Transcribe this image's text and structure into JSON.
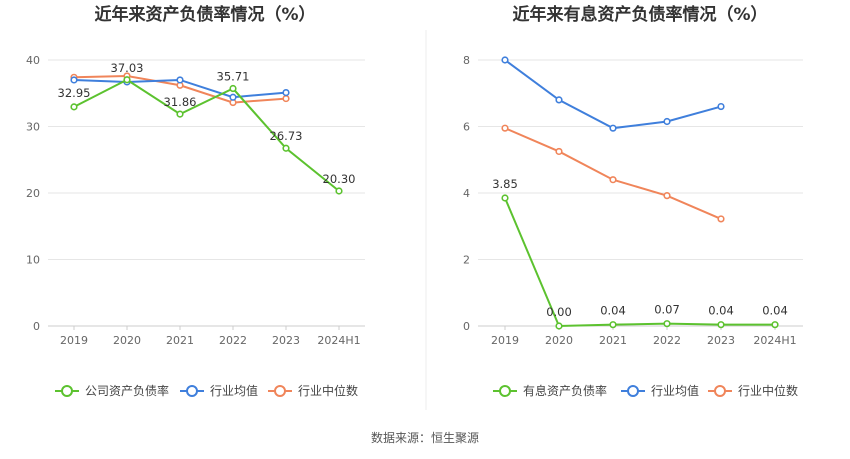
{
  "chart_data": [
    {
      "type": "line",
      "title": "近年来资产负债率情况（%）",
      "categories": [
        "2019",
        "2020",
        "2021",
        "2022",
        "2023",
        "2024H1"
      ],
      "ylim": [
        0,
        40
      ],
      "yticks": [
        "0",
        "10",
        "20",
        "30",
        "40"
      ],
      "grid": true,
      "legend_position": "bottom",
      "series": [
        {
          "name": "公司资产负债率",
          "color": "#5cc22f",
          "values": [
            32.95,
            37.03,
            31.86,
            35.71,
            26.73,
            20.3
          ],
          "labels": [
            "32.95",
            "37.03",
            "31.86",
            "35.71",
            "26.73",
            "20.30"
          ]
        },
        {
          "name": "行业均值",
          "color": "#3f7fdc",
          "values": [
            37.0,
            36.7,
            37.0,
            34.4,
            35.1,
            null
          ]
        },
        {
          "name": "行业中位数",
          "color": "#f0855a",
          "values": [
            37.4,
            37.6,
            36.2,
            33.6,
            34.2,
            null
          ]
        }
      ]
    },
    {
      "type": "line",
      "title": "近年来有息资产负债率情况（%）",
      "categories": [
        "2019",
        "2020",
        "2021",
        "2022",
        "2023",
        "2024H1"
      ],
      "ylim": [
        0,
        8
      ],
      "yticks": [
        "0",
        "2",
        "4",
        "6",
        "8"
      ],
      "grid": true,
      "legend_position": "bottom",
      "series": [
        {
          "name": "有息资产负债率",
          "color": "#5cc22f",
          "values": [
            3.85,
            0.0,
            0.04,
            0.07,
            0.04,
            0.04
          ],
          "labels": [
            "3.85",
            "0.00",
            "0.04",
            "0.07",
            "0.04",
            "0.04"
          ]
        },
        {
          "name": "行业均值",
          "color": "#3f7fdc",
          "values": [
            8.0,
            6.8,
            5.95,
            6.15,
            6.6,
            null
          ]
        },
        {
          "name": "行业中位数",
          "color": "#f0855a",
          "values": [
            5.95,
            5.25,
            4.4,
            3.92,
            3.22,
            null
          ]
        }
      ]
    }
  ],
  "footer": {
    "source": "数据来源：恒生聚源"
  }
}
